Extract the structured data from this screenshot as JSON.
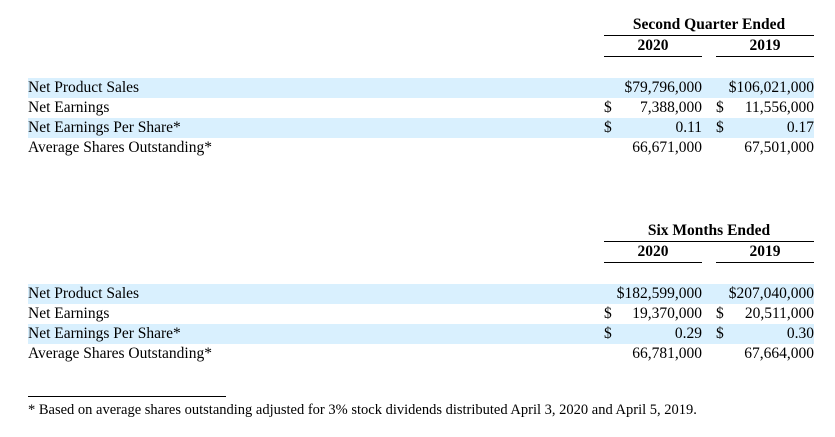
{
  "sections": [
    {
      "title": "Second Quarter Ended",
      "years": [
        "2020",
        "2019"
      ],
      "rows": [
        {
          "label": "Net Product Sales",
          "cur1": "$",
          "val1": "79,796,000",
          "cur2": "$",
          "val2": "106,021,000",
          "compact": true
        },
        {
          "label": "Net Earnings",
          "cur1": "$",
          "val1": "7,388,000",
          "cur2": "$",
          "val2": "11,556,000"
        },
        {
          "label": "Net Earnings Per Share*",
          "cur1": "$",
          "val1": "0.11",
          "cur2": "$",
          "val2": "0.17"
        },
        {
          "label": "Average Shares Outstanding*",
          "cur1": "",
          "val1": "66,671,000",
          "cur2": "",
          "val2": "67,501,000"
        }
      ]
    },
    {
      "title": "Six Months Ended",
      "years": [
        "2020",
        "2019"
      ],
      "rows": [
        {
          "label": "Net Product Sales",
          "cur1": "$",
          "val1": "182,599,000",
          "cur2": "$",
          "val2": "207,040,000",
          "compact": true
        },
        {
          "label": "Net Earnings",
          "cur1": "$",
          "val1": "19,370,000",
          "cur2": "$",
          "val2": "20,511,000"
        },
        {
          "label": "Net Earnings Per Share*",
          "cur1": "$",
          "val1": "0.29",
          "cur2": "$",
          "val2": "0.30"
        },
        {
          "label": "Average Shares Outstanding*",
          "cur1": "",
          "val1": "66,781,000",
          "cur2": "",
          "val2": "67,664,000"
        }
      ]
    }
  ],
  "footnote": "* Based on average shares outstanding adjusted for 3% stock dividends distributed April 3, 2020 and April 5, 2019."
}
